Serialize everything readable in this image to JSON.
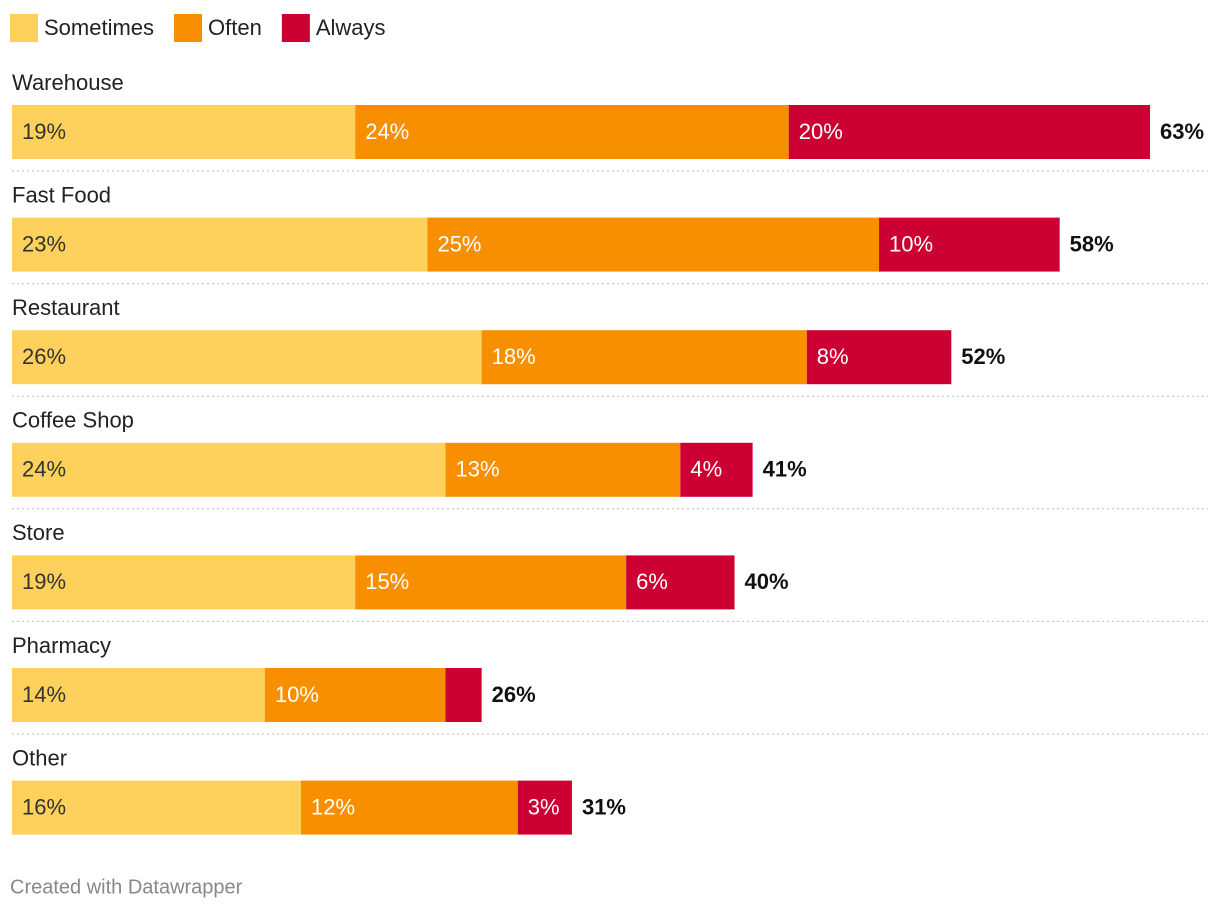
{
  "chart_data": {
    "type": "stacked-bar-horizontal",
    "categories": [
      "Warehouse",
      "Fast Food",
      "Restaurant",
      "Coffee Shop",
      "Store",
      "Pharmacy",
      "Other"
    ],
    "series": [
      {
        "name": "Sometimes",
        "color": "#fdd15c",
        "values": [
          19,
          23,
          26,
          24,
          19,
          14,
          16
        ],
        "value_labels": [
          "19%",
          "23%",
          "26%",
          "24%",
          "19%",
          "14%",
          "16%"
        ]
      },
      {
        "name": "Often",
        "color": "#f78f00",
        "values": [
          24,
          25,
          18,
          13,
          15,
          10,
          12
        ],
        "value_labels": [
          "24%",
          "25%",
          "18%",
          "13%",
          "15%",
          "10%",
          "12%"
        ]
      },
      {
        "name": "Always",
        "color": "#cc0033",
        "values": [
          20,
          10,
          8,
          4,
          6,
          2,
          3
        ],
        "value_labels": [
          "20%",
          "10%",
          "8%",
          "4%",
          "6%",
          null,
          "3%"
        ]
      }
    ],
    "totals": [
      63,
      58,
      52,
      41,
      40,
      26,
      31
    ],
    "total_labels": [
      "63%",
      "58%",
      "52%",
      "41%",
      "40%",
      "26%",
      "31%"
    ],
    "xlim": [
      0,
      63
    ],
    "credit": "Created with Datawrapper"
  }
}
